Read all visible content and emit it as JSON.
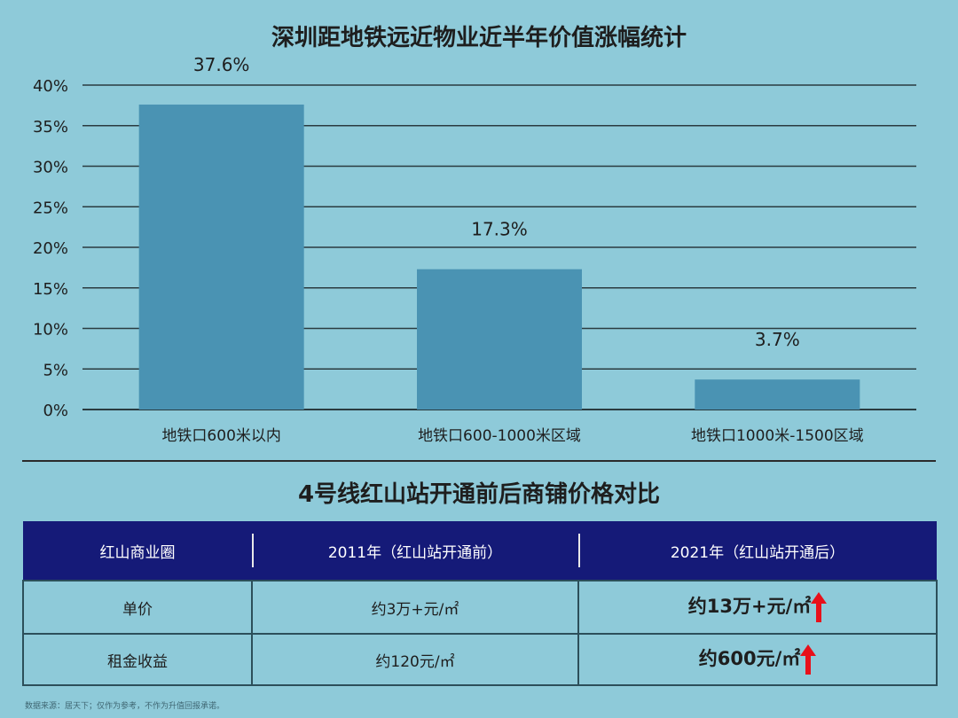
{
  "chart_data": {
    "type": "bar",
    "title": "深圳距地铁远近物业近半年价值涨幅统计",
    "categories": [
      "地铁口600米以内",
      "地铁口600-1000米区域",
      "地铁口1000米-1500区域"
    ],
    "values": [
      37.6,
      17.3,
      3.7
    ],
    "value_labels": [
      "37.6%",
      "17.3%",
      "3.7%"
    ],
    "ylim": [
      0,
      40
    ],
    "yticks": [
      "0%",
      "5%",
      "10%",
      "15%",
      "20%",
      "25%",
      "30%",
      "35%",
      "40%"
    ],
    "grid": true,
    "bar_color": "#4a93b3"
  },
  "table": {
    "title": "4号线红山站开通前后商铺价格对比",
    "headers": [
      "红山商业圈",
      "2011年（红山站开通前）",
      "2021年（红山站开通后）"
    ],
    "rows": [
      {
        "label": "单价",
        "before": "约3万+元/㎡",
        "after": "约13万+元/㎡"
      },
      {
        "label": "租金收益",
        "before": "约120元/㎡",
        "after": "约600元/㎡"
      }
    ],
    "header_color": "#151a78",
    "increase_icon": "red-up-arrow-icon"
  },
  "footnote": "数据来源：居天下；仅作为参考，不作为升值回报承诺。"
}
